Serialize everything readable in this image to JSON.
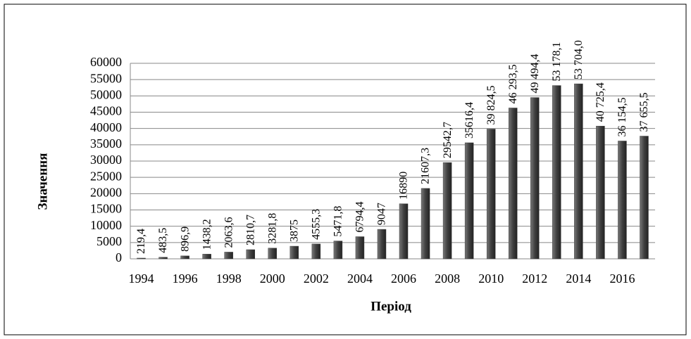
{
  "chart_data": {
    "type": "bar",
    "x_label": "Період",
    "y_label": "Значення",
    "categories": [
      "1994",
      null,
      "1996",
      null,
      "1998",
      null,
      "2000",
      null,
      "2002",
      null,
      "2004",
      null,
      "2006",
      null,
      "2008",
      null,
      "2010",
      null,
      "2012",
      null,
      "2014",
      null,
      "2016",
      null
    ],
    "values": [
      219.4,
      483.5,
      896.9,
      1438.2,
      2063.6,
      2810.7,
      3281.8,
      3875,
      4555.3,
      5471.8,
      6794.4,
      9047,
      16890,
      21607.3,
      29542.7,
      35616.4,
      39824.5,
      46293.5,
      49494.4,
      53178.1,
      53704.0,
      40725.4,
      36154.5,
      37655.5
    ],
    "value_labels": [
      "219,4",
      "483,5",
      "896,9",
      "1438,2",
      "2063,6",
      "2810,7",
      "3281,8",
      "3875",
      "4555,3",
      "5471,8",
      "6794,4",
      "9047",
      "16890",
      "21607,3",
      "29542,7",
      "35616,4",
      "39 824,5",
      "46 293,5",
      "49 494,4",
      "53 178,1",
      "53 704,0",
      "40 725,4",
      "36 154,5",
      "37 655,5"
    ],
    "color": "#404040",
    "ylim": [
      0,
      60000
    ],
    "yticks": [
      0,
      5000,
      10000,
      15000,
      20000,
      25000,
      30000,
      35000,
      40000,
      45000,
      50000,
      55000,
      60000
    ],
    "grid": true
  }
}
